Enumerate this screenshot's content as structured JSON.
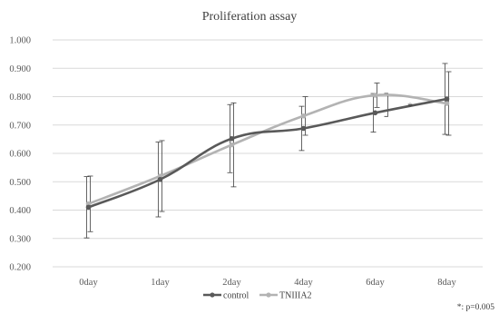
{
  "chart_data": {
    "type": "line",
    "title": "Proliferation assay",
    "categories": [
      "0day",
      "1day",
      "2day",
      "4day",
      "6day",
      "8day"
    ],
    "ylim": [
      0.2,
      1.0
    ],
    "yticks": [
      "0.200",
      "0.300",
      "0.400",
      "0.500",
      "0.600",
      "0.700",
      "0.800",
      "0.900",
      "1.000"
    ],
    "grid": true,
    "legend_position": "bottom",
    "smoothed": true,
    "series": [
      {
        "name": "control",
        "color": "#595959",
        "values": [
          0.41,
          0.508,
          0.652,
          0.688,
          0.743,
          0.792
        ],
        "error": [
          0.108,
          0.132,
          0.12,
          0.078,
          0.068,
          0.125
        ]
      },
      {
        "name": "TNIIIA2",
        "color": "#b3b3b3",
        "values": [
          0.422,
          0.52,
          0.63,
          0.732,
          0.805,
          0.776
        ],
        "error": [
          0.098,
          0.125,
          0.148,
          0.068,
          0.043,
          0.112
        ]
      }
    ],
    "annotations": [
      {
        "text": "*",
        "category": "6day"
      },
      {
        "text": "*: p=0.005",
        "position": "bottom-right"
      }
    ]
  }
}
